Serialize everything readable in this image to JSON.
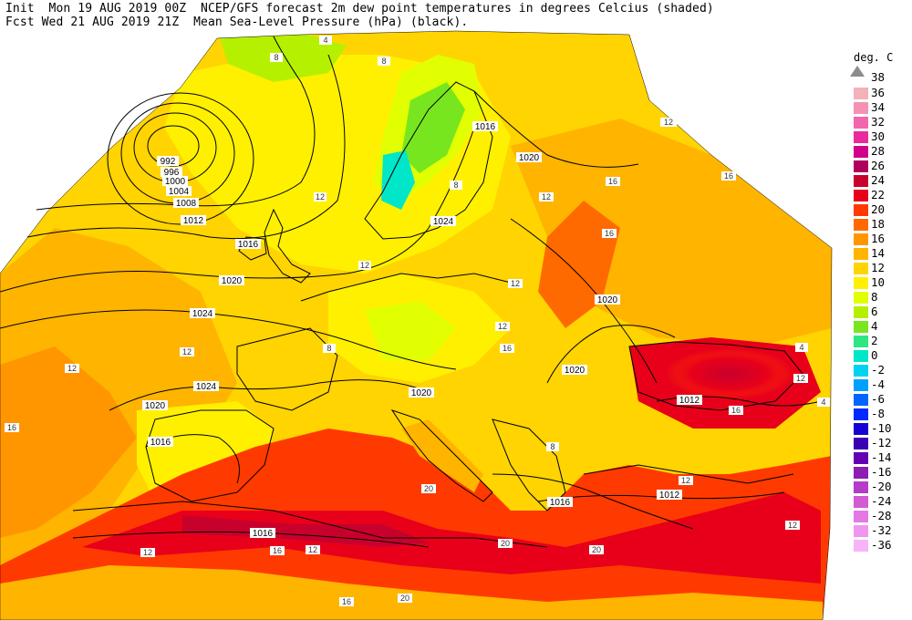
{
  "header": {
    "line1": "Init  Mon 19 AUG 2019 00Z  NCEP/GFS forecast 2m dew point temperatures in degrees Celcius (shaded)",
    "line2": "Fcst Wed 21 AUG 2019 21Z  Mean Sea-Level Pressure (hPa) (black)."
  },
  "legend": {
    "title": "deg. C",
    "top_label": "38",
    "entries": [
      {
        "label": "36",
        "color": "#f4b1b8"
      },
      {
        "label": "34",
        "color": "#f592b4"
      },
      {
        "label": "32",
        "color": "#f266ac"
      },
      {
        "label": "30",
        "color": "#ea2a9a"
      },
      {
        "label": "28",
        "color": "#d1008a"
      },
      {
        "label": "26",
        "color": "#b0005e"
      },
      {
        "label": "24",
        "color": "#c8002c"
      },
      {
        "label": "22",
        "color": "#e8001a"
      },
      {
        "label": "20",
        "color": "#ff3a00"
      },
      {
        "label": "18",
        "color": "#ff6a00"
      },
      {
        "label": "16",
        "color": "#ff9600"
      },
      {
        "label": "14",
        "color": "#ffb400"
      },
      {
        "label": "12",
        "color": "#ffd400"
      },
      {
        "label": "10",
        "color": "#fff000"
      },
      {
        "label": "8",
        "color": "#e1ff00"
      },
      {
        "label": "6",
        "color": "#b5f000"
      },
      {
        "label": "4",
        "color": "#78e61e"
      },
      {
        "label": "2",
        "color": "#2ee682"
      },
      {
        "label": "0",
        "color": "#00e6c8"
      },
      {
        "label": "-2",
        "color": "#00d2f0"
      },
      {
        "label": "-4",
        "color": "#00a0ff"
      },
      {
        "label": "-6",
        "color": "#0064ff"
      },
      {
        "label": "-8",
        "color": "#0028ff"
      },
      {
        "label": "-10",
        "color": "#1400d2"
      },
      {
        "label": "-12",
        "color": "#3c00b4"
      },
      {
        "label": "-14",
        "color": "#6400b4"
      },
      {
        "label": "-16",
        "color": "#8c1eb4"
      },
      {
        "label": "-20",
        "color": "#b43cc8"
      },
      {
        "label": "-24",
        "color": "#d25ad2"
      },
      {
        "label": "-28",
        "color": "#e678e6"
      },
      {
        "label": "-32",
        "color": "#f096f0"
      },
      {
        "label": "-36",
        "color": "#f8b4f8"
      }
    ]
  },
  "pressure_labels": [
    "992",
    "996",
    "1000",
    "1004",
    "1008",
    "1012",
    "1016",
    "1020",
    "1024",
    "1020",
    "1016",
    "1024",
    "1020",
    "1020",
    "1024",
    "1020",
    "1020",
    "1012",
    "1016",
    "1012",
    "1016",
    "1016"
  ],
  "dewpoint_labels": [
    "4",
    "8",
    "8",
    "12",
    "12",
    "12",
    "8",
    "12",
    "16",
    "16",
    "16",
    "12",
    "12",
    "16",
    "12",
    "16",
    "20",
    "20",
    "20",
    "16",
    "12",
    "12",
    "16",
    "12",
    "20",
    "16",
    "8",
    "4",
    "12",
    "8",
    "12",
    "12",
    "4"
  ]
}
